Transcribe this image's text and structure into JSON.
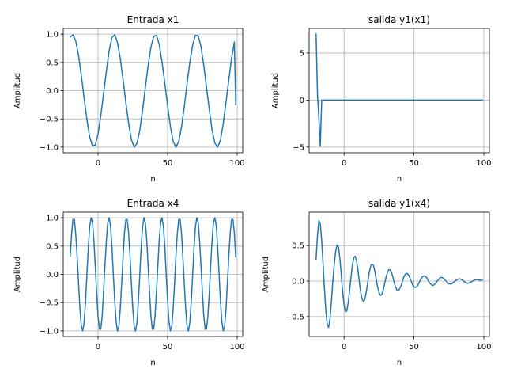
{
  "chart_data": [
    {
      "type": "line",
      "title": "Entrada x1",
      "xlabel": "n",
      "ylabel": "Amplitud",
      "grid": true,
      "xlim": [
        -25,
        104
      ],
      "ylim": [
        -1.1,
        1.1
      ],
      "xticks": [
        0,
        50,
        100
      ],
      "yticks": [
        -1.0,
        -0.5,
        0.0,
        0.5,
        1.0
      ],
      "xtick_labels": [
        "0",
        "50",
        "100"
      ],
      "ytick_labels": [
        "−1.0",
        "−0.5",
        "0.0",
        "0.5",
        "1.0"
      ],
      "color": "#1f77b4",
      "series": [
        {
          "x": [
            -20,
            -18,
            -16,
            -14,
            -12,
            -10,
            -8,
            -6,
            -4,
            -2,
            0,
            2,
            4,
            6,
            8,
            10,
            12,
            14,
            16,
            18,
            20,
            22,
            24,
            26,
            28,
            30,
            32,
            34,
            36,
            38,
            40,
            42,
            44,
            46,
            48,
            50,
            52,
            54,
            56,
            58,
            60,
            62,
            64,
            66,
            68,
            70,
            72,
            74,
            76,
            78,
            80,
            82,
            84,
            86,
            88,
            90,
            92,
            94,
            96,
            98,
            99
          ],
          "y": [
            0.95,
            0.99,
            0.88,
            0.62,
            0.26,
            -0.13,
            -0.51,
            -0.82,
            -0.98,
            -0.96,
            -0.77,
            -0.44,
            -0.05,
            0.35,
            0.71,
            0.94,
            0.99,
            0.85,
            0.57,
            0.19,
            -0.21,
            -0.58,
            -0.87,
            -1.0,
            -0.93,
            -0.7,
            -0.35,
            0.05,
            0.44,
            0.77,
            0.96,
            0.98,
            0.82,
            0.51,
            0.13,
            -0.27,
            -0.63,
            -0.9,
            -1.0,
            -0.9,
            -0.64,
            -0.28,
            0.12,
            0.5,
            0.81,
            0.98,
            0.97,
            0.78,
            0.45,
            0.06,
            -0.34,
            -0.7,
            -0.93,
            -1.0,
            -0.88,
            -0.58,
            -0.2,
            0.19,
            0.57,
            0.86,
            -0.25
          ]
        }
      ]
    },
    {
      "type": "line",
      "title": "salida y1(x1)",
      "xlabel": "n",
      "ylabel": "Amplitud",
      "grid": true,
      "xlim": [
        -25,
        104
      ],
      "ylim": [
        -5.6,
        7.6
      ],
      "xticks": [
        0,
        50,
        100
      ],
      "yticks": [
        -5,
        0,
        5
      ],
      "xtick_labels": [
        "0",
        "50",
        "100"
      ],
      "ytick_labels": [
        "−5",
        "0",
        "5"
      ],
      "color": "#1f77b4",
      "series": [
        {
          "x": [
            -20,
            -19,
            -18,
            -17,
            -16,
            -10,
            0,
            20,
            40,
            60,
            80,
            99
          ],
          "y": [
            7.0,
            0.5,
            -2.0,
            -4.9,
            0.0,
            0.0,
            0.0,
            0.0,
            0.0,
            0.0,
            0.0,
            0.0
          ]
        }
      ]
    },
    {
      "type": "line",
      "title": "Entrada x4",
      "xlabel": "n",
      "ylabel": "Amplitud",
      "grid": true,
      "xlim": [
        -25,
        104
      ],
      "ylim": [
        -1.1,
        1.1
      ],
      "xticks": [
        0,
        50,
        100
      ],
      "yticks": [
        -1.0,
        -0.5,
        0.0,
        0.5,
        1.0
      ],
      "xtick_labels": [
        "0",
        "50",
        "100"
      ],
      "ytick_labels": [
        "−1.0",
        "−0.5",
        "0.0",
        "0.5",
        "1.0"
      ],
      "color": "#1f77b4",
      "series": [
        {
          "x": [
            -20,
            -19,
            -18,
            -17,
            -16,
            -15,
            -14,
            -13,
            -12,
            -11,
            -10,
            -9,
            -8,
            -7,
            -6,
            -5,
            -4,
            -3,
            -2,
            -1,
            0,
            1,
            2,
            3,
            4,
            5,
            6,
            7,
            8,
            9,
            10,
            11,
            12,
            13,
            14,
            15,
            16,
            17,
            18,
            19,
            20,
            21,
            22,
            23,
            24,
            25,
            26,
            27,
            28,
            29,
            30,
            31,
            32,
            33,
            34,
            35,
            36,
            37,
            38,
            39,
            40,
            41,
            42,
            43,
            44,
            45,
            46,
            47,
            48,
            49,
            50,
            51,
            52,
            53,
            54,
            55,
            56,
            57,
            58,
            59,
            60,
            61,
            62,
            63,
            64,
            65,
            66,
            67,
            68,
            69,
            70,
            71,
            72,
            73,
            74,
            75,
            76,
            77,
            78,
            79,
            80,
            81,
            82,
            83,
            84,
            85,
            86,
            87,
            88,
            89,
            90,
            91,
            92,
            93,
            94,
            95,
            96,
            97,
            98,
            99
          ],
          "y": [
            0.32,
            0.72,
            0.97,
            0.97,
            0.71,
            0.31,
            -0.17,
            -0.61,
            -0.92,
            -1.0,
            -0.85,
            -0.48,
            -0.01,
            0.47,
            0.84,
            1.0,
            0.92,
            0.61,
            0.16,
            -0.32,
            -0.74,
            -0.97,
            -0.97,
            -0.73,
            -0.31,
            0.17,
            0.61,
            0.92,
            1.0,
            0.85,
            0.48,
            0.01,
            -0.47,
            -0.84,
            -1.0,
            -0.92,
            -0.61,
            -0.16,
            0.32,
            0.73,
            0.97,
            0.97,
            0.73,
            0.31,
            -0.17,
            -0.61,
            -0.92,
            -1.0,
            -0.85,
            -0.48,
            -0.01,
            0.47,
            0.84,
            1.0,
            0.92,
            0.61,
            0.16,
            -0.32,
            -0.73,
            -0.97,
            -0.97,
            -0.73,
            -0.31,
            0.17,
            0.61,
            0.92,
            1.0,
            0.85,
            0.48,
            0.01,
            -0.47,
            -0.84,
            -1.0,
            -0.92,
            -0.61,
            -0.16,
            0.32,
            0.73,
            0.97,
            0.97,
            0.73,
            0.31,
            -0.17,
            -0.61,
            -0.92,
            -1.0,
            -0.85,
            -0.48,
            -0.01,
            0.47,
            0.84,
            1.0,
            0.92,
            0.61,
            0.16,
            -0.32,
            -0.73,
            -0.97,
            -0.97,
            -0.73,
            -0.31,
            0.17,
            0.61,
            0.92,
            1.0,
            0.85,
            0.48,
            0.01,
            -0.47,
            -0.84,
            -1.0,
            -0.92,
            -0.61,
            -0.16,
            0.32,
            0.73,
            0.97,
            0.97,
            0.73,
            0.31
          ]
        }
      ]
    },
    {
      "type": "line",
      "title": "salida y1(x4)",
      "xlabel": "n",
      "ylabel": "Amplitud",
      "grid": true,
      "xlim": [
        -25,
        104
      ],
      "ylim": [
        -0.78,
        0.97
      ],
      "xticks": [
        0,
        50,
        100
      ],
      "yticks": [
        -0.5,
        0.0,
        0.5
      ],
      "xtick_labels": [
        "0",
        "50",
        "100"
      ],
      "ytick_labels": [
        "−0.5",
        "0.0",
        "0.5"
      ],
      "color": "#1f77b4",
      "series": [
        {
          "x": [
            -20,
            -19,
            -18,
            -17,
            -16,
            -15,
            -14,
            -13,
            -12,
            -11,
            -10,
            -9,
            -8,
            -7,
            -6,
            -5,
            -4,
            -3,
            -2,
            -1,
            0,
            1,
            2,
            3,
            4,
            5,
            6,
            7,
            8,
            9,
            10,
            11,
            12,
            13,
            14,
            15,
            16,
            17,
            18,
            19,
            20,
            21,
            22,
            23,
            24,
            25,
            26,
            27,
            28,
            29,
            30,
            31,
            32,
            33,
            34,
            35,
            36,
            37,
            38,
            39,
            40,
            41,
            42,
            43,
            44,
            45,
            46,
            47,
            48,
            49,
            50,
            51,
            52,
            53,
            54,
            55,
            56,
            57,
            58,
            59,
            60,
            61,
            62,
            63,
            64,
            65,
            66,
            67,
            68,
            69,
            70,
            71,
            72,
            73,
            74,
            75,
            76,
            77,
            78,
            79,
            80,
            81,
            82,
            83,
            84,
            85,
            86,
            87,
            88,
            89,
            90,
            91,
            92,
            93,
            94,
            95,
            96,
            97,
            98,
            99
          ],
          "y": [
            0.31,
            0.65,
            0.85,
            0.81,
            0.57,
            0.23,
            -0.12,
            -0.43,
            -0.62,
            -0.65,
            -0.52,
            -0.27,
            0.0,
            0.24,
            0.42,
            0.51,
            0.48,
            0.32,
            0.08,
            -0.15,
            -0.34,
            -0.43,
            -0.42,
            -0.3,
            -0.12,
            0.06,
            0.23,
            0.33,
            0.35,
            0.28,
            0.14,
            -0.02,
            -0.17,
            -0.26,
            -0.29,
            -0.25,
            -0.14,
            -0.01,
            0.12,
            0.21,
            0.24,
            0.22,
            0.14,
            0.03,
            -0.08,
            -0.16,
            -0.2,
            -0.19,
            -0.13,
            -0.04,
            0.05,
            0.12,
            0.16,
            0.16,
            0.12,
            0.05,
            -0.03,
            -0.09,
            -0.13,
            -0.13,
            -0.1,
            -0.05,
            0.01,
            0.07,
            0.1,
            0.11,
            0.09,
            0.05,
            0.0,
            -0.05,
            -0.08,
            -0.09,
            -0.08,
            -0.05,
            -0.01,
            0.03,
            0.06,
            0.07,
            0.07,
            0.05,
            0.02,
            -0.02,
            -0.04,
            -0.06,
            -0.06,
            -0.04,
            -0.02,
            0.01,
            0.03,
            0.05,
            0.05,
            0.04,
            0.02,
            0.0,
            -0.02,
            -0.04,
            -0.04,
            -0.04,
            -0.02,
            -0.01,
            0.01,
            0.02,
            0.03,
            0.03,
            0.02,
            0.01,
            -0.01,
            -0.02,
            -0.03,
            -0.03,
            -0.02,
            -0.01,
            0.0,
            0.01,
            0.02,
            0.02,
            0.02,
            0.01,
            0.01,
            0.02
          ]
        }
      ]
    }
  ]
}
